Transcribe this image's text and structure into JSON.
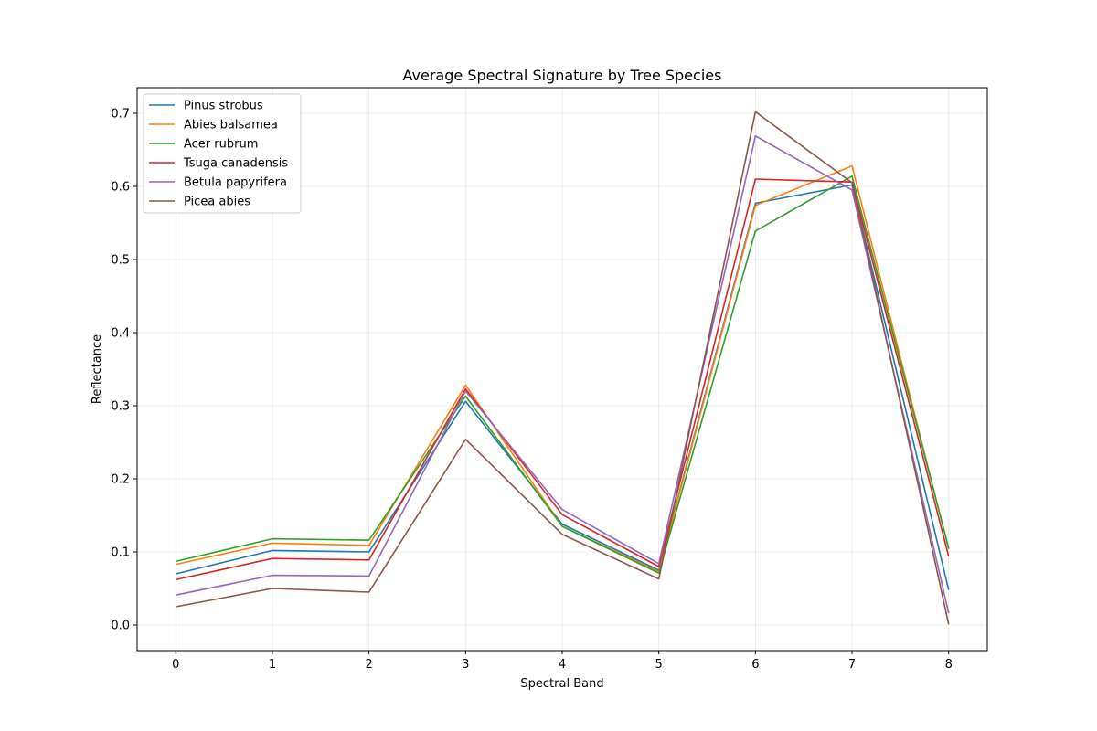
{
  "chart_data": {
    "type": "line",
    "title": "Average Spectral Signature by Tree Species",
    "xlabel": "Spectral Band",
    "ylabel": "Reflectance",
    "x": [
      0,
      1,
      2,
      3,
      4,
      5,
      6,
      7,
      8
    ],
    "xlim": [
      -0.4,
      8.4
    ],
    "ylim": [
      -0.035,
      0.735
    ],
    "xticks": [
      "0",
      "1",
      "2",
      "3",
      "4",
      "5",
      "6",
      "7",
      "8"
    ],
    "yticks": [
      "0.0",
      "0.1",
      "0.2",
      "0.3",
      "0.4",
      "0.5",
      "0.6",
      "0.7"
    ],
    "grid": true,
    "legend_position": "top-left",
    "series": [
      {
        "name": "Pinus strobus",
        "color": "#1f77b4",
        "values": [
          0.07,
          0.102,
          0.1,
          0.306,
          0.138,
          0.075,
          0.577,
          0.602,
          0.048
        ]
      },
      {
        "name": "Abies balsamea",
        "color": "#ff7f0e",
        "values": [
          0.083,
          0.112,
          0.109,
          0.328,
          0.135,
          0.073,
          0.574,
          0.628,
          0.104
        ]
      },
      {
        "name": "Acer rubrum",
        "color": "#2ca02c",
        "values": [
          0.087,
          0.118,
          0.116,
          0.313,
          0.135,
          0.071,
          0.539,
          0.614,
          0.105
        ]
      },
      {
        "name": "Tsuga canadensis",
        "color": "#d62728",
        "values": [
          0.062,
          0.091,
          0.089,
          0.323,
          0.151,
          0.08,
          0.61,
          0.606,
          0.094
        ]
      },
      {
        "name": "Betula papyrifera",
        "color": "#9467bd",
        "values": [
          0.041,
          0.068,
          0.067,
          0.32,
          0.158,
          0.084,
          0.669,
          0.595,
          0.016
        ]
      },
      {
        "name": "Picea abies",
        "color": "#8c564b",
        "values": [
          0.025,
          0.05,
          0.045,
          0.254,
          0.124,
          0.063,
          0.702,
          0.605,
          0.001
        ]
      }
    ]
  }
}
